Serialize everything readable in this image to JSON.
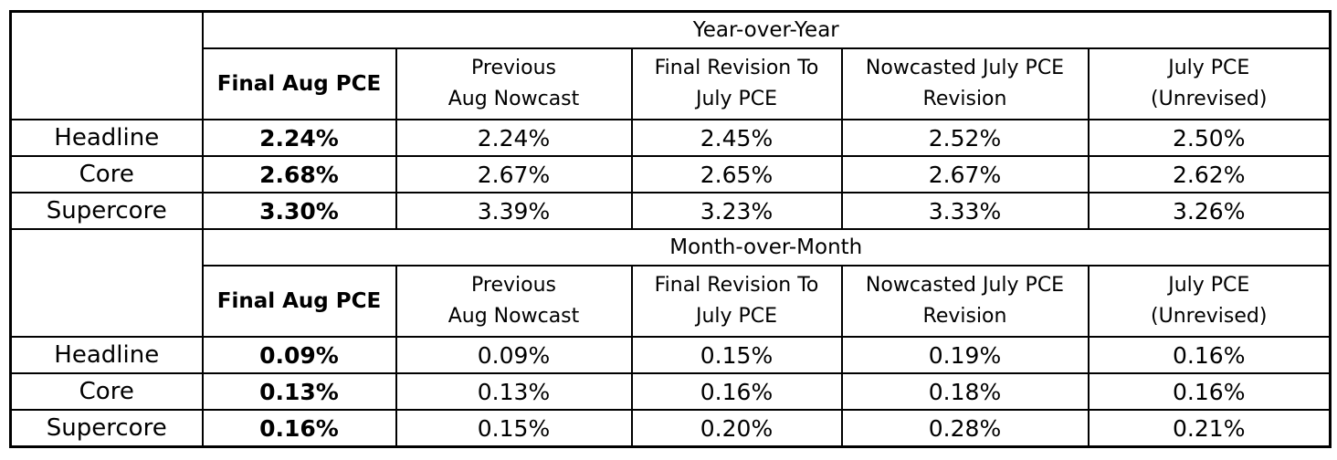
{
  "table": {
    "sections": [
      {
        "title": "Year-over-Year",
        "columns": [
          "Final Aug PCE",
          "Previous\nAug Nowcast",
          "Final Revision To\nJuly PCE",
          "Nowcasted July PCE\nRevision",
          "July PCE\n(Unrevised)"
        ],
        "rows": [
          {
            "label": "Headline",
            "values": [
              "2.24%",
              "2.24%",
              "2.45%",
              "2.52%",
              "2.50%"
            ]
          },
          {
            "label": "Core",
            "values": [
              "2.68%",
              "2.67%",
              "2.65%",
              "2.67%",
              "2.62%"
            ]
          },
          {
            "label": "Supercore",
            "values": [
              "3.30%",
              "3.39%",
              "3.23%",
              "3.33%",
              "3.26%"
            ]
          }
        ]
      },
      {
        "title": "Month-over-Month",
        "columns": [
          "Final Aug PCE",
          "Previous\nAug Nowcast",
          "Final Revision To\nJuly PCE",
          "Nowcasted July PCE\nRevision",
          "July PCE\n(Unrevised)"
        ],
        "rows": [
          {
            "label": "Headline",
            "values": [
              "0.09%",
              "0.09%",
              "0.15%",
              "0.19%",
              "0.16%"
            ]
          },
          {
            "label": "Core",
            "values": [
              "0.13%",
              "0.13%",
              "0.16%",
              "0.18%",
              "0.16%"
            ]
          },
          {
            "label": "Supercore",
            "values": [
              "0.16%",
              "0.15%",
              "0.20%",
              "0.28%",
              "0.21%"
            ]
          }
        ]
      }
    ]
  }
}
